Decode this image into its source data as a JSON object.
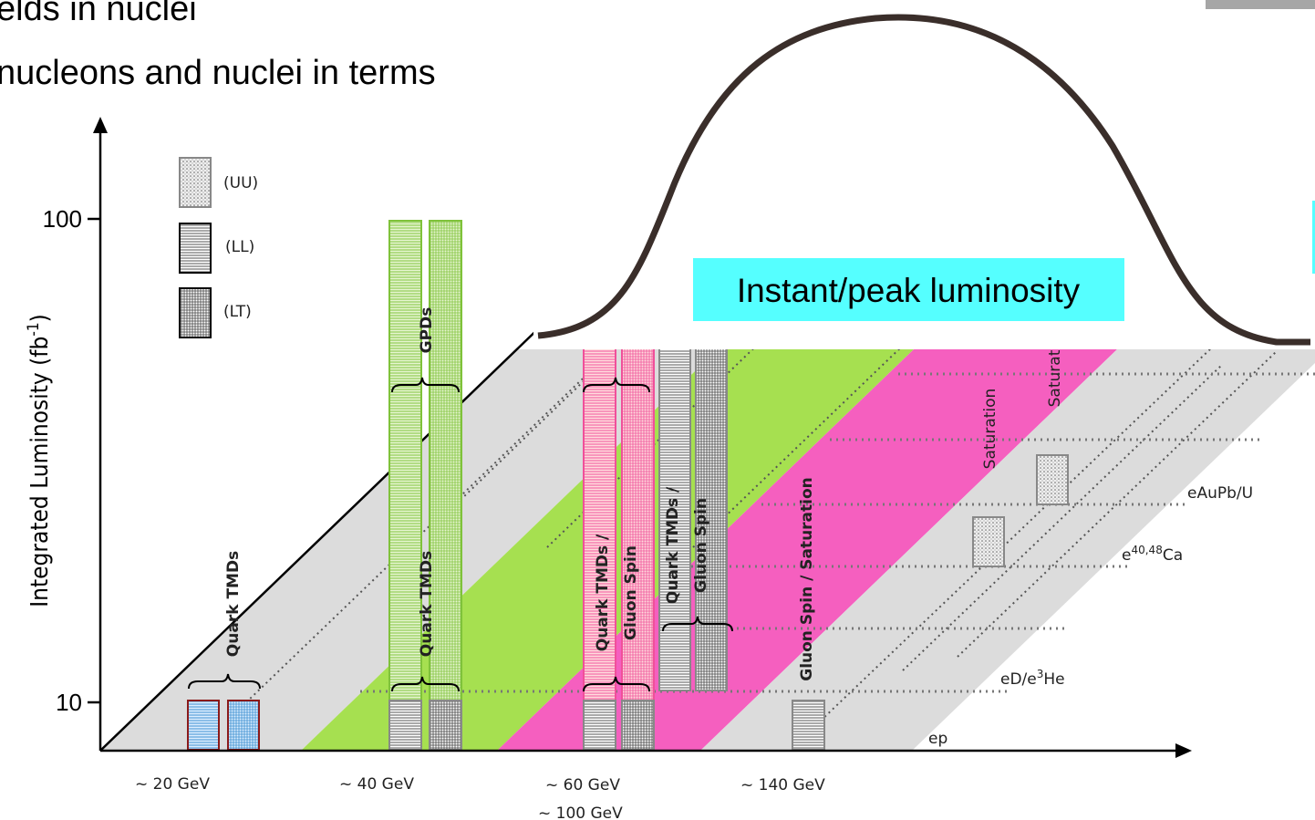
{
  "header": {
    "lines": [
      "elds in nuclei",
      "nucleons and nuclei in terms"
    ]
  },
  "legend": [
    "(UU)",
    "(LL)",
    "(LT)"
  ],
  "y_axis": {
    "label": [
      "Integrated Luminosity (fb",
      "-1",
      ")"
    ],
    "ticks": [
      "100",
      "10"
    ]
  },
  "x_axis": {
    "labels": [
      "~ 20 GeV",
      "~ 40 GeV",
      "~ 60 GeV",
      "~ 100 GeV",
      "~ 140 GeV"
    ]
  },
  "topics": [
    {
      "lines": [
        "Quark TMDs"
      ]
    },
    {
      "lines": [
        "GPDs"
      ]
    },
    {
      "lines": [
        "Quark TMDs"
      ]
    },
    {
      "lines": [
        "Quark TMDs /",
        "Gluon Spin"
      ]
    },
    {
      "lines": [
        "Quark TMDs /",
        "Gluon Spin"
      ]
    },
    {
      "lines": [
        "Gluon Spin / Saturation"
      ]
    },
    {
      "lines": [
        "Saturation"
      ]
    },
    {
      "lines": [
        "Saturat"
      ]
    }
  ],
  "beams": {
    "eAu": "eAuPb/U",
    "eCa": [
      "e",
      "40,48",
      "Ca"
    ],
    "eD": [
      "eD/e",
      "3",
      "He"
    ],
    "ep": "ep"
  },
  "callout": "Instant/peak luminosity"
}
